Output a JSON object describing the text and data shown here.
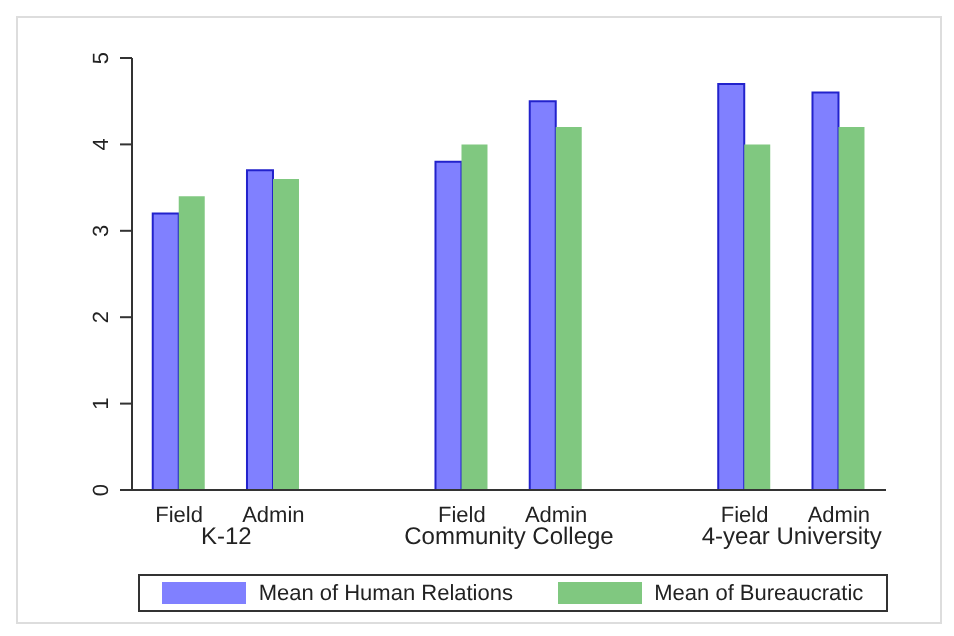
{
  "chart_data": {
    "type": "bar",
    "categories": [
      "Field",
      "Admin",
      null,
      "Field",
      "Admin",
      null,
      "Field",
      "Admin"
    ],
    "series": [
      {
        "name": "Mean of Human Relations",
        "color": "#8080ff",
        "values": [
          3.2,
          3.7,
          null,
          3.8,
          4.5,
          null,
          4.7,
          4.6
        ]
      },
      {
        "name": "Mean of Bureaucratic",
        "color": "#80c880",
        "values": [
          3.4,
          3.6,
          null,
          4.0,
          4.2,
          null,
          4.0,
          4.2
        ]
      }
    ],
    "ylim": [
      0,
      5
    ],
    "yticks": [
      0,
      1,
      2,
      3,
      4,
      5
    ],
    "legend": "bottom",
    "annotations": [
      "K-12",
      "Community College",
      "4-year University"
    ]
  }
}
